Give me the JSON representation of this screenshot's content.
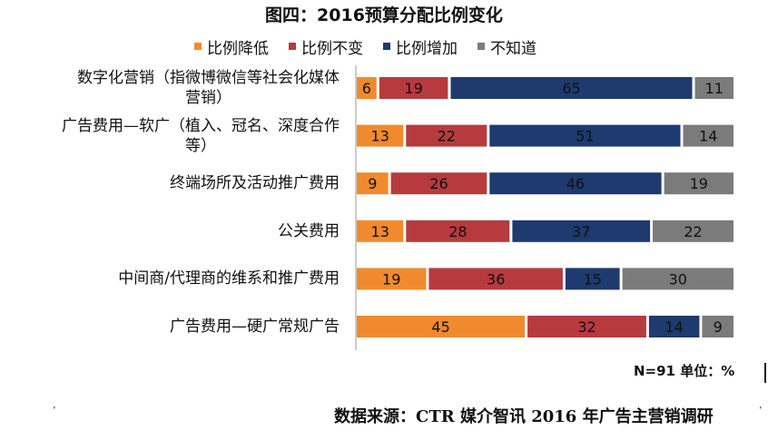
{
  "chart_data": {
    "type": "bar",
    "orientation": "horizontal-stacked-100",
    "title": "图四：2016预算分配比例变化",
    "categories": [
      [
        "数字化营销（指微博微信等社会化媒体",
        "营销）"
      ],
      [
        "广告费用—软广（植入、冠名、深度合作",
        "等）"
      ],
      [
        "终端场所及活动推广费用"
      ],
      [
        "公关费用"
      ],
      [
        "中间商/代理商的维系和推广费用"
      ],
      [
        "广告费用—硬广常规广告"
      ]
    ],
    "series": [
      {
        "name": "比例降低",
        "color": "#f08a2e",
        "values": [
          6,
          13,
          9,
          13,
          19,
          45
        ]
      },
      {
        "name": "比例不变",
        "color": "#b73a3f",
        "values": [
          19,
          22,
          26,
          28,
          36,
          32
        ]
      },
      {
        "name": "比例增加",
        "color": "#1e3a6e",
        "values": [
          65,
          51,
          46,
          37,
          15,
          14
        ]
      },
      {
        "name": "不知道",
        "color": "#7b7b7b",
        "values": [
          11,
          14,
          19,
          22,
          30,
          9
        ]
      }
    ],
    "unit_note": "N=91 单位：%",
    "source": "数据来源：CTR  媒介智讯  2016 年广告主营销调研"
  },
  "marks": {
    "left": "ʼ",
    "right": "ʼ"
  }
}
